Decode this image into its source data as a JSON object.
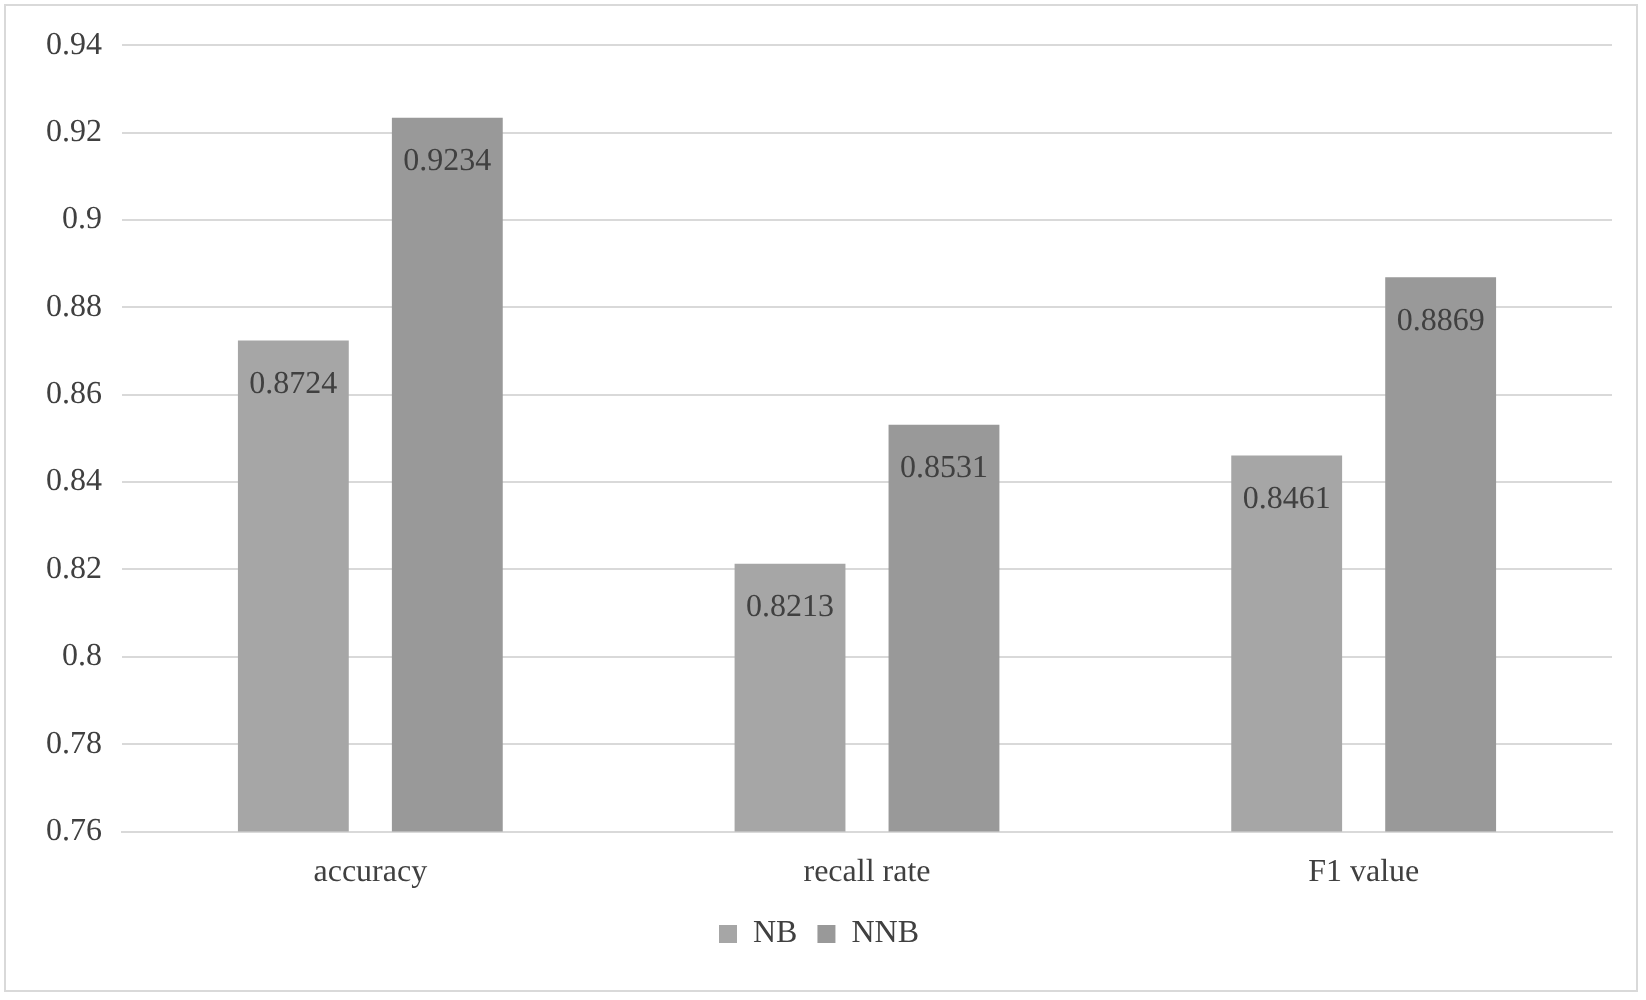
{
  "chart_data": {
    "type": "bar",
    "categories": [
      "accuracy",
      "recall rate",
      "F1 value"
    ],
    "series": [
      {
        "name": "NB",
        "color": "#a6a6a6",
        "values": [
          0.8724,
          0.8213,
          0.8461
        ]
      },
      {
        "name": "NNB",
        "color": "#999999",
        "values": [
          0.9234,
          0.8531,
          0.8869
        ]
      }
    ],
    "ylim": [
      0.76,
      0.94
    ],
    "yticks": [
      0.76,
      0.78,
      0.8,
      0.82,
      0.84,
      0.86,
      0.88,
      0.9,
      0.92,
      0.94
    ],
    "grid": "y",
    "legend": "bottom",
    "data_labels": true
  }
}
